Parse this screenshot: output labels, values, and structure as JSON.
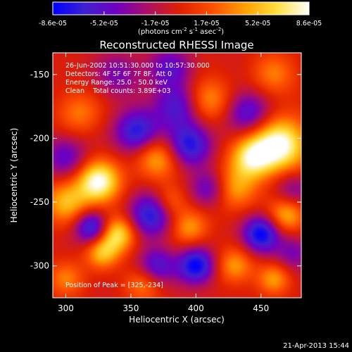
{
  "chart_data": {
    "type": "heatmap",
    "title": "Reconstructed RHESSI Image",
    "colorbar": {
      "ticks": [
        "-8.6e-05",
        "-5.2e-05",
        "-1.7e-05",
        "1.7e-05",
        "5.2e-05",
        "8.6e-05"
      ],
      "unit_label": "(photons cm",
      "unit_exp1": "-2",
      "unit_mid": " s",
      "unit_exp2": "-1",
      "unit_end": " asec",
      "unit_exp3": "-2",
      "unit_close": ")",
      "range": [
        -8.6e-05,
        8.6e-05
      ],
      "colors": [
        "#0000ff",
        "#4020d0",
        "#7000c0",
        "#b01060",
        "#e02000",
        "#ff5000",
        "#ffa000",
        "#ffe040",
        "#ffffff"
      ]
    },
    "xlabel": "Heliocentric X (arcsec)",
    "ylabel": "Heliocentric Y (arcsec)",
    "xlim": [
      290,
      481
    ],
    "ylim": [
      -325,
      -133
    ],
    "xticks": [
      300,
      350,
      400,
      450
    ],
    "yticks": [
      -150,
      -200,
      -250,
      -300
    ],
    "info_lines": [
      "26-Jun-2002 10:51:30.000 to 10:57:30.000",
      "Detectors: 4F 5F 6F 7F 8F, Att 0",
      "Energy Range: 25.0 - 50.0 keV",
      "Clean    Total counts: 3.89E+03"
    ],
    "peak_label": "Position of Peak = [325,-234]",
    "peak": [
      325,
      -234
    ],
    "blobs": [
      {
        "x": 325,
        "y": -234,
        "a": 1.0,
        "s": 12
      },
      {
        "x": 465,
        "y": -205,
        "a": 1.0,
        "s": 15
      },
      {
        "x": 443,
        "y": -215,
        "a": 0.8,
        "s": 12
      },
      {
        "x": 300,
        "y": -250,
        "a": 0.6,
        "s": 12
      },
      {
        "x": 340,
        "y": -275,
        "a": 0.8,
        "s": 10
      },
      {
        "x": 328,
        "y": -290,
        "a": 0.6,
        "s": 9
      },
      {
        "x": 370,
        "y": -215,
        "a": 0.6,
        "s": 12
      },
      {
        "x": 410,
        "y": -170,
        "a": 0.5,
        "s": 12
      },
      {
        "x": 430,
        "y": -240,
        "a": 0.5,
        "s": 12
      },
      {
        "x": 470,
        "y": -260,
        "a": 0.6,
        "s": 10
      },
      {
        "x": 310,
        "y": -180,
        "a": 0.4,
        "s": 12
      },
      {
        "x": 395,
        "y": -270,
        "a": 0.5,
        "s": 10
      },
      {
        "x": 430,
        "y": -300,
        "a": 0.5,
        "s": 10
      },
      {
        "x": 360,
        "y": -315,
        "a": 0.4,
        "s": 10
      },
      {
        "x": 460,
        "y": -150,
        "a": 0.4,
        "s": 12
      },
      {
        "x": 380,
        "y": -250,
        "a": 0.4,
        "s": 9
      },
      {
        "x": 460,
        "y": -310,
        "a": 0.5,
        "s": 9
      },
      {
        "x": 300,
        "y": -310,
        "a": 0.4,
        "s": 10
      },
      {
        "x": 355,
        "y": -195,
        "a": -0.8,
        "s": 12
      },
      {
        "x": 385,
        "y": -175,
        "a": -0.6,
        "s": 12
      },
      {
        "x": 395,
        "y": -205,
        "a": -0.8,
        "s": 12
      },
      {
        "x": 440,
        "y": -180,
        "a": -0.6,
        "s": 12
      },
      {
        "x": 320,
        "y": -270,
        "a": -0.8,
        "s": 9
      },
      {
        "x": 365,
        "y": -260,
        "a": -0.8,
        "s": 12
      },
      {
        "x": 400,
        "y": -300,
        "a": -0.9,
        "s": 10
      },
      {
        "x": 450,
        "y": -275,
        "a": -0.9,
        "s": 10
      },
      {
        "x": 410,
        "y": -240,
        "a": -0.5,
        "s": 10
      },
      {
        "x": 300,
        "y": -215,
        "a": -0.5,
        "s": 12
      },
      {
        "x": 340,
        "y": -150,
        "a": -0.4,
        "s": 12
      },
      {
        "x": 380,
        "y": -145,
        "a": -0.5,
        "s": 12
      },
      {
        "x": 475,
        "y": -240,
        "a": -0.4,
        "s": 10
      },
      {
        "x": 370,
        "y": -300,
        "a": -0.6,
        "s": 10
      },
      {
        "x": 475,
        "y": -290,
        "a": -0.4,
        "s": 10
      }
    ]
  },
  "footer": {
    "date": "21-Apr-2013 15:44"
  }
}
